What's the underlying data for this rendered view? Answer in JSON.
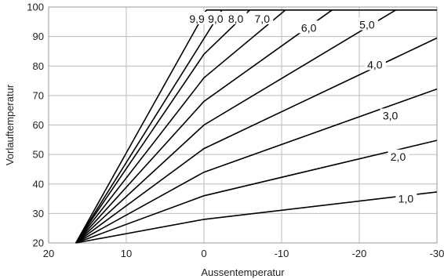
{
  "chart_data": {
    "type": "line",
    "title": "",
    "xlabel": "Aussentemperatur",
    "ylabel": "Vorlauftemperatur",
    "xlim": [
      20,
      -30
    ],
    "ylim": [
      20,
      100
    ],
    "x_reversed": true,
    "grid": true,
    "xticks": [
      20,
      10,
      0,
      -10,
      -20,
      -30
    ],
    "yticks": [
      20,
      30,
      40,
      50,
      60,
      70,
      80,
      90,
      100
    ],
    "xtick_labels": [
      "20",
      "10",
      "0",
      "-10",
      "-20",
      "-30"
    ],
    "ytick_labels": [
      "20",
      "30",
      "40",
      "50",
      "60",
      "70",
      "80",
      "90",
      "100"
    ],
    "cap": 99,
    "series": [
      {
        "name": "1,0",
        "x": [
          16.5,
          0,
          -30
        ],
        "y": [
          20,
          28,
          37.3
        ],
        "label_at": [
          -26,
          35
        ]
      },
      {
        "name": "2,0",
        "x": [
          16.5,
          0,
          -30
        ],
        "y": [
          20,
          36,
          54.8
        ],
        "label_at": [
          -25,
          49.3
        ]
      },
      {
        "name": "3,0",
        "x": [
          16.5,
          0,
          -30
        ],
        "y": [
          20,
          44,
          72.2
        ],
        "label_at": [
          -24,
          63.2
        ]
      },
      {
        "name": "4,0",
        "x": [
          16.5,
          0,
          -30
        ],
        "y": [
          20,
          52,
          89.5
        ],
        "label_at": [
          -22,
          80.5
        ]
      },
      {
        "name": "5,0",
        "x": [
          16.5,
          0,
          -24.7
        ],
        "y": [
          20,
          60,
          99
        ],
        "label_at": [
          -21,
          94
        ]
      },
      {
        "name": "6,0",
        "x": [
          16.5,
          0,
          -16.5
        ],
        "y": [
          20,
          68,
          99
        ],
        "label_at": [
          -13.5,
          93
        ]
      },
      {
        "name": "7,0",
        "x": [
          16.5,
          0,
          -10.5
        ],
        "y": [
          20,
          76,
          99
        ],
        "label_at": [
          -7.5,
          96
        ]
      },
      {
        "name": "8,0",
        "x": [
          16.5,
          0,
          -5.9
        ],
        "y": [
          20,
          84,
          99
        ],
        "label_at": [
          -4.1,
          96
        ]
      },
      {
        "name": "9,0",
        "x": [
          16.5,
          -2.3
        ],
        "y": [
          20,
          99
        ],
        "label_at": [
          -1.5,
          96
        ]
      },
      {
        "name": "9,9",
        "x": [
          16.5,
          -0.3
        ],
        "y": [
          20,
          99
        ],
        "label_at": [
          0.9,
          96
        ]
      }
    ]
  }
}
